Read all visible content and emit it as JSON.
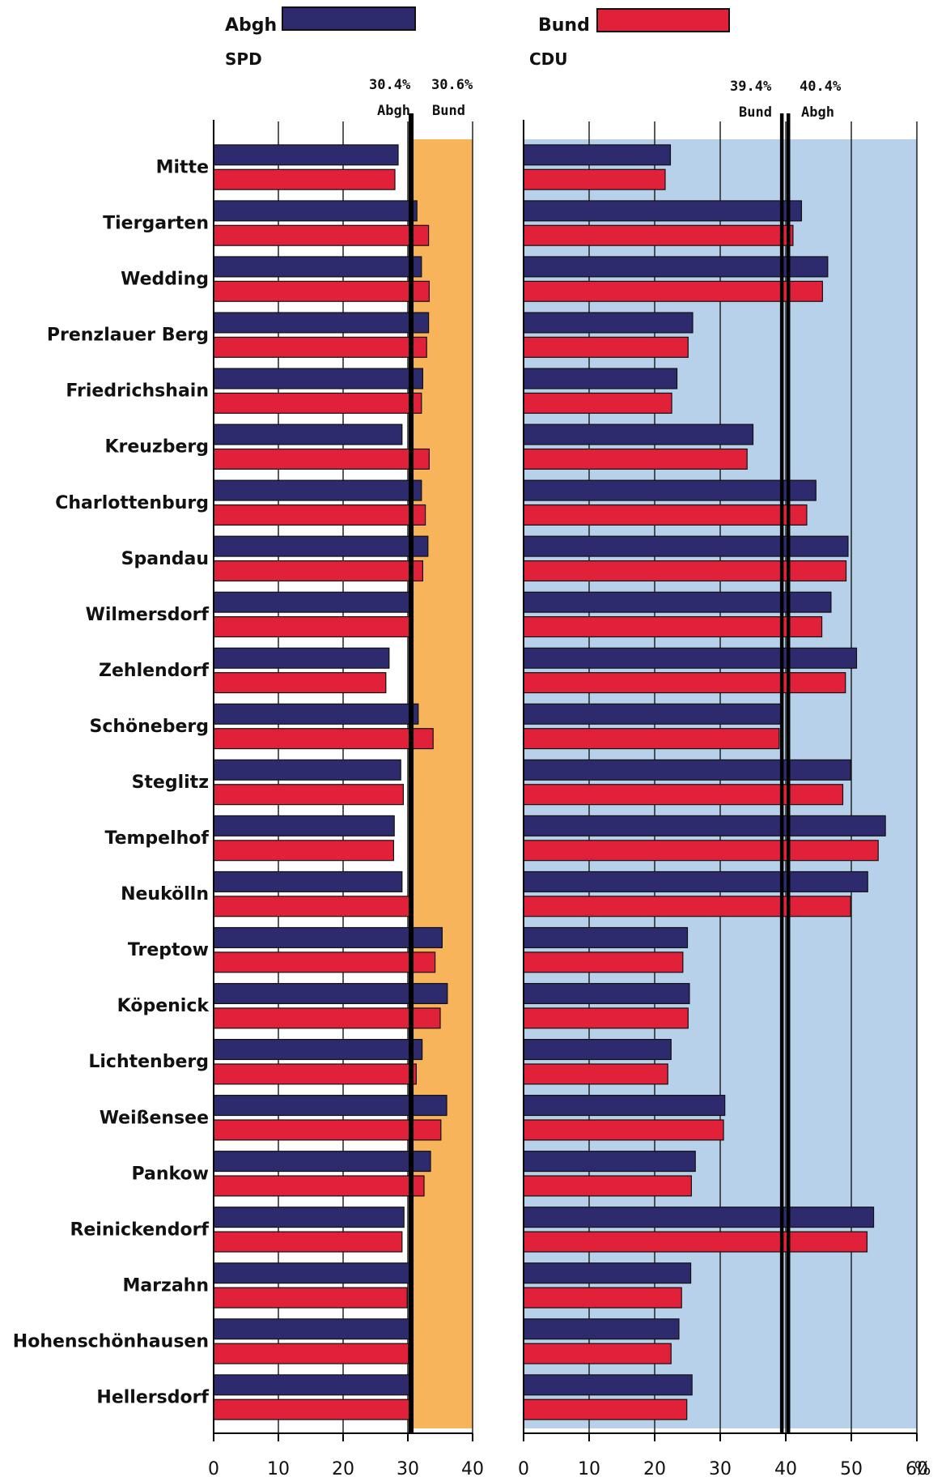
{
  "legend": [
    {
      "name": "Abgh",
      "color": "#2d2a6e"
    },
    {
      "name": "Bund",
      "color": "#e1203a"
    }
  ],
  "colors": {
    "spd_background": "#f8b45a",
    "cdu_background": "#b7d1ea",
    "axis": "#000000"
  },
  "x_unit_label": "%",
  "chart_data": [
    {
      "type": "bar",
      "orientation": "horizontal",
      "title": "SPD",
      "xlim": [
        0,
        40
      ],
      "xticks": [
        0,
        10,
        20,
        30,
        40
      ],
      "shaded_region": [
        30.4,
        40
      ],
      "reference_lines": [
        {
          "value": 30.4,
          "label_value": "30.4%",
          "label_name": "Abgh"
        },
        {
          "value": 30.6,
          "label_value": "30.6%",
          "label_name": "Bund"
        }
      ],
      "categories": [
        "Mitte",
        "Tiergarten",
        "Wedding",
        "Prenzlauer Berg",
        "Friedrichshain",
        "Kreuzberg",
        "Charlottenburg",
        "Spandau",
        "Wilmersdorf",
        "Zehlendorf",
        "Schöneberg",
        "Steglitz",
        "Tempelhof",
        "Neukölln",
        "Treptow",
        "Köpenick",
        "Lichtenberg",
        "Weißensee",
        "Pankow",
        "Reinickendorf",
        "Marzahn",
        "Hohenschönhausen",
        "Hellersdorf"
      ],
      "series": [
        {
          "name": "Abgh",
          "values": [
            28.5,
            31.4,
            32.1,
            33.2,
            32.3,
            29.1,
            32.1,
            33.1,
            30.5,
            27.1,
            31.6,
            28.9,
            27.9,
            29.1,
            35.3,
            36.1,
            32.2,
            36.0,
            33.5,
            29.4,
            30.6,
            30.2,
            30.7
          ]
        },
        {
          "name": "Bund",
          "values": [
            28.0,
            33.2,
            33.3,
            32.9,
            32.1,
            33.3,
            32.7,
            32.3,
            30.5,
            26.6,
            33.9,
            29.3,
            27.8,
            30.2,
            34.2,
            35.0,
            31.3,
            35.1,
            32.5,
            29.1,
            29.9,
            30.1,
            30.5
          ]
        }
      ]
    },
    {
      "type": "bar",
      "orientation": "horizontal",
      "title": "CDU",
      "xlim": [
        0,
        60
      ],
      "xticks": [
        0,
        10,
        20,
        30,
        40,
        50,
        60
      ],
      "shaded_region": [
        0,
        60
      ],
      "reference_lines": [
        {
          "value": 39.4,
          "label_value": "39.4%",
          "label_name": "Bund"
        },
        {
          "value": 40.4,
          "label_value": "40.4%",
          "label_name": "Abgh"
        }
      ],
      "categories": [
        "Mitte",
        "Tiergarten",
        "Wedding",
        "Prenzlauer Berg",
        "Friedrichshain",
        "Kreuzberg",
        "Charlottenburg",
        "Spandau",
        "Wilmersdorf",
        "Zehlendorf",
        "Schöneberg",
        "Steglitz",
        "Tempelhof",
        "Neukölln",
        "Treptow",
        "Köpenick",
        "Lichtenberg",
        "Weißensee",
        "Pankow",
        "Reinickendorf",
        "Marzahn",
        "Hohenschönhausen",
        "Hellersdorf"
      ],
      "series": [
        {
          "name": "Abgh",
          "values": [
            22.4,
            42.4,
            46.4,
            25.8,
            23.4,
            35.0,
            44.6,
            49.5,
            46.9,
            50.8,
            39.3,
            49.9,
            55.2,
            52.5,
            25.0,
            25.3,
            22.5,
            30.7,
            26.2,
            53.4,
            25.5,
            23.7,
            25.7
          ]
        },
        {
          "name": "Bund",
          "values": [
            21.6,
            41.1,
            45.6,
            25.1,
            22.6,
            34.1,
            43.2,
            49.2,
            45.5,
            49.1,
            39.0,
            48.7,
            54.1,
            49.9,
            24.3,
            25.1,
            22.0,
            30.5,
            25.6,
            52.4,
            24.1,
            22.5,
            24.9
          ]
        }
      ]
    }
  ]
}
